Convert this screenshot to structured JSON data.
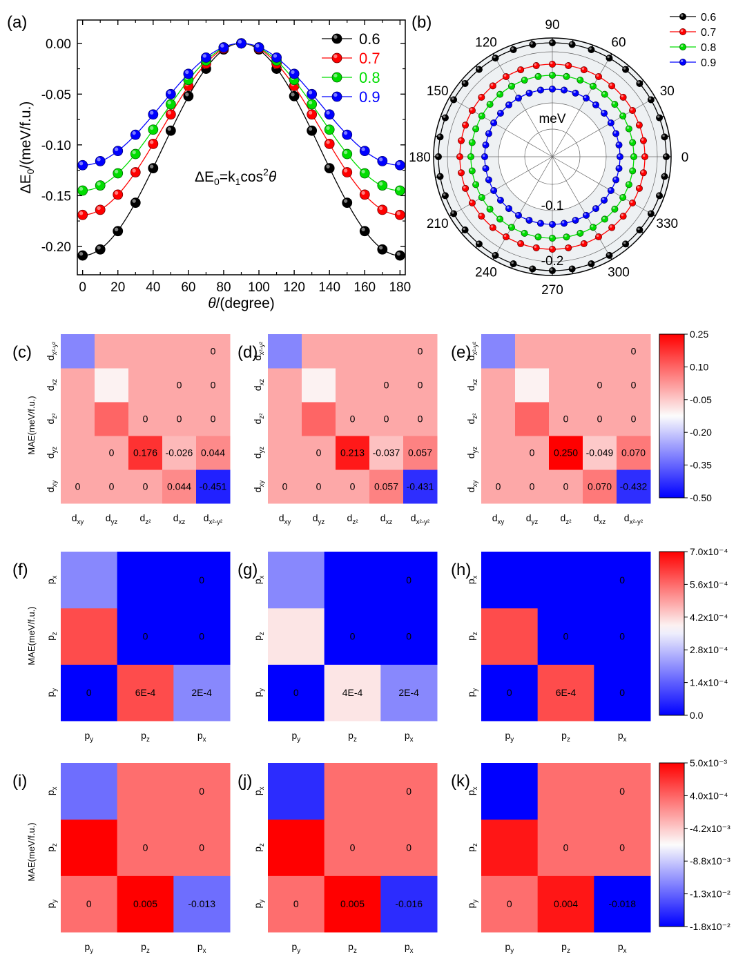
{
  "chart_data": [
    {
      "panel": "(a)",
      "type": "line",
      "xlabel": "θ/(degree)",
      "ylabel": "ΔE0/(meV/f.u.)",
      "xlim": [
        -3,
        183
      ],
      "ylim": [
        -0.228,
        0.023
      ],
      "xticks": [
        0,
        20,
        40,
        60,
        80,
        100,
        120,
        140,
        160,
        180
      ],
      "yticks": [
        0.0,
        -0.05,
        -0.1,
        -0.15,
        -0.2
      ],
      "ytick_labels": [
        "0.00",
        "-0.05",
        "-0.10",
        "-0.15",
        "-0.20"
      ],
      "annotation": "ΔE0=k1cos²θ",
      "x": [
        0,
        10,
        20,
        30,
        40,
        50,
        60,
        70,
        80,
        90,
        100,
        110,
        120,
        130,
        140,
        150,
        160,
        170,
        180
      ],
      "series": [
        {
          "name": "0.6",
          "color": "#000000",
          "values": [
            -0.209,
            -0.203,
            -0.185,
            -0.157,
            -0.123,
            -0.086,
            -0.052,
            -0.025,
            -0.006,
            0.0,
            -0.006,
            -0.025,
            -0.052,
            -0.086,
            -0.123,
            -0.157,
            -0.185,
            -0.203,
            -0.209
          ]
        },
        {
          "name": "0.7",
          "color": "#ff0000",
          "values": [
            -0.169,
            -0.164,
            -0.149,
            -0.127,
            -0.099,
            -0.07,
            -0.042,
            -0.02,
            -0.005,
            0.0,
            -0.005,
            -0.02,
            -0.042,
            -0.07,
            -0.099,
            -0.127,
            -0.149,
            -0.164,
            -0.169
          ]
        },
        {
          "name": "0.8",
          "color": "#00dd00",
          "values": [
            -0.145,
            -0.14,
            -0.128,
            -0.109,
            -0.085,
            -0.06,
            -0.036,
            -0.017,
            -0.004,
            0.0,
            -0.004,
            -0.017,
            -0.036,
            -0.06,
            -0.085,
            -0.109,
            -0.128,
            -0.14,
            -0.145
          ]
        },
        {
          "name": "0.9",
          "color": "#0000ff",
          "values": [
            -0.12,
            -0.116,
            -0.106,
            -0.09,
            -0.07,
            -0.05,
            -0.03,
            -0.014,
            -0.004,
            0.0,
            -0.004,
            -0.014,
            -0.03,
            -0.05,
            -0.07,
            -0.09,
            -0.106,
            -0.116,
            -0.12
          ]
        }
      ]
    },
    {
      "panel": "(b)",
      "type": "polar",
      "unit_label": "meV",
      "angle_labels": [
        "0",
        "30",
        "60",
        "90",
        "120",
        "150",
        "180",
        "210",
        "240",
        "270",
        "300",
        "330"
      ],
      "radial_labels": [
        "-0.1",
        "-0.2"
      ],
      "series": [
        {
          "name": "0.6",
          "color": "#000000",
          "amplitude": -0.209
        },
        {
          "name": "0.7",
          "color": "#ff0000",
          "amplitude": -0.169
        },
        {
          "name": "0.8",
          "color": "#00dd00",
          "amplitude": -0.145
        },
        {
          "name": "0.9",
          "color": "#0000ff",
          "amplitude": -0.12
        }
      ]
    },
    {
      "type": "heatmap",
      "group": "d-orbital",
      "panels": [
        "(c)",
        "(d)",
        "(e)"
      ],
      "ylabel": "MAE(meV/f.u.)",
      "x_labels": [
        "d_xy",
        "d_yz",
        "d_z²",
        "d_xz",
        "d_x²-y²"
      ],
      "y_labels": [
        "d_xy",
        "d_yz",
        "d_z²",
        "d_xz",
        "d_x²-y²"
      ],
      "colorbar": {
        "min": -0.5,
        "max": 0.25,
        "white": -0.125,
        "ticks": [
          "0.25",
          "0.10",
          "-0.05",
          "-0.20",
          "-0.35",
          "-0.50"
        ]
      },
      "matrices": [
        [
          [
            0,
            0,
            0,
            0.044,
            -0.451
          ],
          [
            0,
            0,
            0.176,
            -0.026,
            0.044
          ],
          [
            0,
            0.099,
            0,
            0,
            0
          ],
          [
            0,
            -0.11,
            0,
            0,
            0
          ],
          [
            -0.3,
            0,
            0,
            0,
            0
          ]
        ],
        [
          [
            0,
            0,
            0,
            0.057,
            -0.431
          ],
          [
            0,
            0,
            0.213,
            -0.037,
            0.057
          ],
          [
            0,
            0.099,
            0,
            0,
            0
          ],
          [
            0,
            -0.11,
            0,
            0,
            0
          ],
          [
            -0.3,
            0,
            0,
            0,
            0
          ]
        ],
        [
          [
            0,
            0,
            0,
            0.07,
            -0.432
          ],
          [
            0,
            0,
            0.25,
            -0.049,
            0.07
          ],
          [
            0,
            0.099,
            0,
            0,
            0
          ],
          [
            0,
            -0.11,
            0,
            0,
            0
          ],
          [
            -0.3,
            0,
            0,
            0,
            0
          ]
        ]
      ],
      "labels": [
        [
          [
            "0",
            "0",
            "0",
            "0.044",
            "-0.451"
          ],
          [
            "",
            "0",
            "0.176",
            "-0.026",
            "0.044"
          ],
          [
            "",
            "",
            "0",
            "0",
            "0"
          ],
          [
            "",
            "",
            "",
            "0",
            "0"
          ],
          [
            "",
            "",
            "",
            "",
            "0"
          ]
        ],
        [
          [
            "0",
            "0",
            "0",
            "0.057",
            "-0.431"
          ],
          [
            "",
            "0",
            "0.213",
            "-0.037",
            "0.057"
          ],
          [
            "",
            "",
            "0",
            "0",
            "0"
          ],
          [
            "",
            "",
            "",
            "0",
            "0"
          ],
          [
            "",
            "",
            "",
            "",
            "0"
          ]
        ],
        [
          [
            "0",
            "0",
            "0",
            "0.070",
            "-0.432"
          ],
          [
            "",
            "0",
            "0.250",
            "-0.049",
            "0.070"
          ],
          [
            "",
            "",
            "0",
            "0",
            "0"
          ],
          [
            "",
            "",
            "",
            "0",
            "0"
          ],
          [
            "",
            "",
            "",
            "",
            "0"
          ]
        ]
      ]
    },
    {
      "type": "heatmap",
      "group": "p-orbital-1",
      "panels": [
        "(f)",
        "(g)",
        "(h)"
      ],
      "ylabel": "MAE(meV/f.u.)",
      "x_labels": [
        "p_y",
        "p_z",
        "p_x"
      ],
      "y_labels": [
        "p_y",
        "p_z",
        "p_x"
      ],
      "colorbar": {
        "min": 0.0,
        "max": 0.0007,
        "white": 0.00037,
        "ticks": [
          "7.0x10⁻⁴",
          "5.6x10⁻⁴",
          "4.2x10⁻⁴",
          "2.8x10⁻⁴",
          "1.4x10⁻⁴",
          "0.0"
        ]
      },
      "matrices": [
        [
          [
            0,
            0.0006,
            0.0002
          ],
          [
            0.0006,
            0,
            0
          ],
          [
            0.0002,
            0,
            0
          ]
        ],
        [
          [
            0,
            0.0004,
            0.0002
          ],
          [
            0.0004,
            0,
            0
          ],
          [
            0.0002,
            0,
            0
          ]
        ],
        [
          [
            0,
            0.0006,
            0
          ],
          [
            0.0006,
            0,
            0
          ],
          [
            0,
            0,
            0
          ]
        ]
      ],
      "labels": [
        [
          [
            "0",
            "6E-4",
            "2E-4"
          ],
          [
            "",
            "0",
            "0"
          ],
          [
            "",
            "",
            "0"
          ]
        ],
        [
          [
            "0",
            "4E-4",
            "2E-4"
          ],
          [
            "",
            "0",
            "0"
          ],
          [
            "",
            "",
            "0"
          ]
        ],
        [
          [
            "0",
            "6E-4",
            "0"
          ],
          [
            "",
            "0",
            "0"
          ],
          [
            "",
            "",
            "0"
          ]
        ]
      ]
    },
    {
      "type": "heatmap",
      "group": "p-orbital-2",
      "panels": [
        "(i)",
        "(j)",
        "(k)"
      ],
      "ylabel": "MAE(meV/f.u.)",
      "x_labels": [
        "p_y",
        "p_z",
        "p_x"
      ],
      "y_labels": [
        "p_y",
        "p_z",
        "p_x"
      ],
      "colorbar": {
        "min": -0.018,
        "max": 0.005,
        "white": -0.0065,
        "ticks": [
          "5.0x10⁻³",
          "4.0x10⁻⁴",
          "-4.2x10⁻³",
          "-8.8x10⁻³",
          "-1.3x10⁻²",
          "-1.8x10⁻²"
        ]
      },
      "matrices": [
        [
          [
            0,
            0.005,
            -0.013
          ],
          [
            0.005,
            0,
            0
          ],
          [
            -0.013,
            0,
            0
          ]
        ],
        [
          [
            0,
            0.005,
            -0.016
          ],
          [
            0.005,
            0,
            0
          ],
          [
            -0.016,
            0,
            0
          ]
        ],
        [
          [
            0,
            0.004,
            -0.018
          ],
          [
            0.004,
            0,
            0
          ],
          [
            -0.018,
            0,
            0
          ]
        ]
      ],
      "labels": [
        [
          [
            "0",
            "0.005",
            "-0.013"
          ],
          [
            "",
            "0",
            "0"
          ],
          [
            "",
            "",
            "0"
          ]
        ],
        [
          [
            "0",
            "0.005",
            "-0.016"
          ],
          [
            "",
            "0",
            "0"
          ],
          [
            "",
            "",
            "0"
          ]
        ],
        [
          [
            "0",
            "0.004",
            "-0.018"
          ],
          [
            "",
            "0",
            "0"
          ],
          [
            "",
            "",
            "0"
          ]
        ]
      ]
    }
  ]
}
